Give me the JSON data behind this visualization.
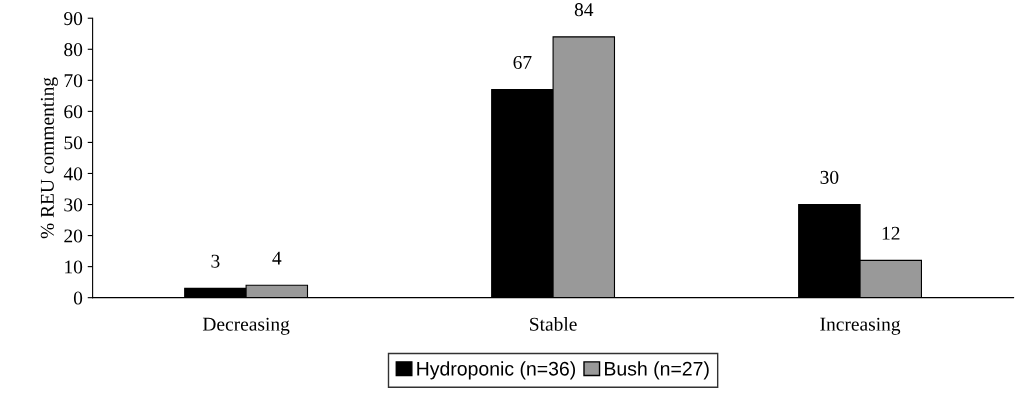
{
  "chart_data": {
    "type": "bar",
    "ylabel": "% REU commenting",
    "categories": [
      "Decreasing",
      "Stable",
      "Increasing"
    ],
    "series": [
      {
        "name": "Hydroponic (n=36)",
        "color": "#000000",
        "values": [
          3,
          67,
          30
        ]
      },
      {
        "name": "Bush (n=27)",
        "color": "#999999",
        "values": [
          4,
          84,
          12
        ]
      }
    ],
    "ylim": [
      0,
      90
    ],
    "yticks": [
      0,
      10,
      20,
      30,
      40,
      50,
      60,
      70,
      80,
      90
    ],
    "data_labels": true,
    "grid": false,
    "legend": "bottom"
  }
}
